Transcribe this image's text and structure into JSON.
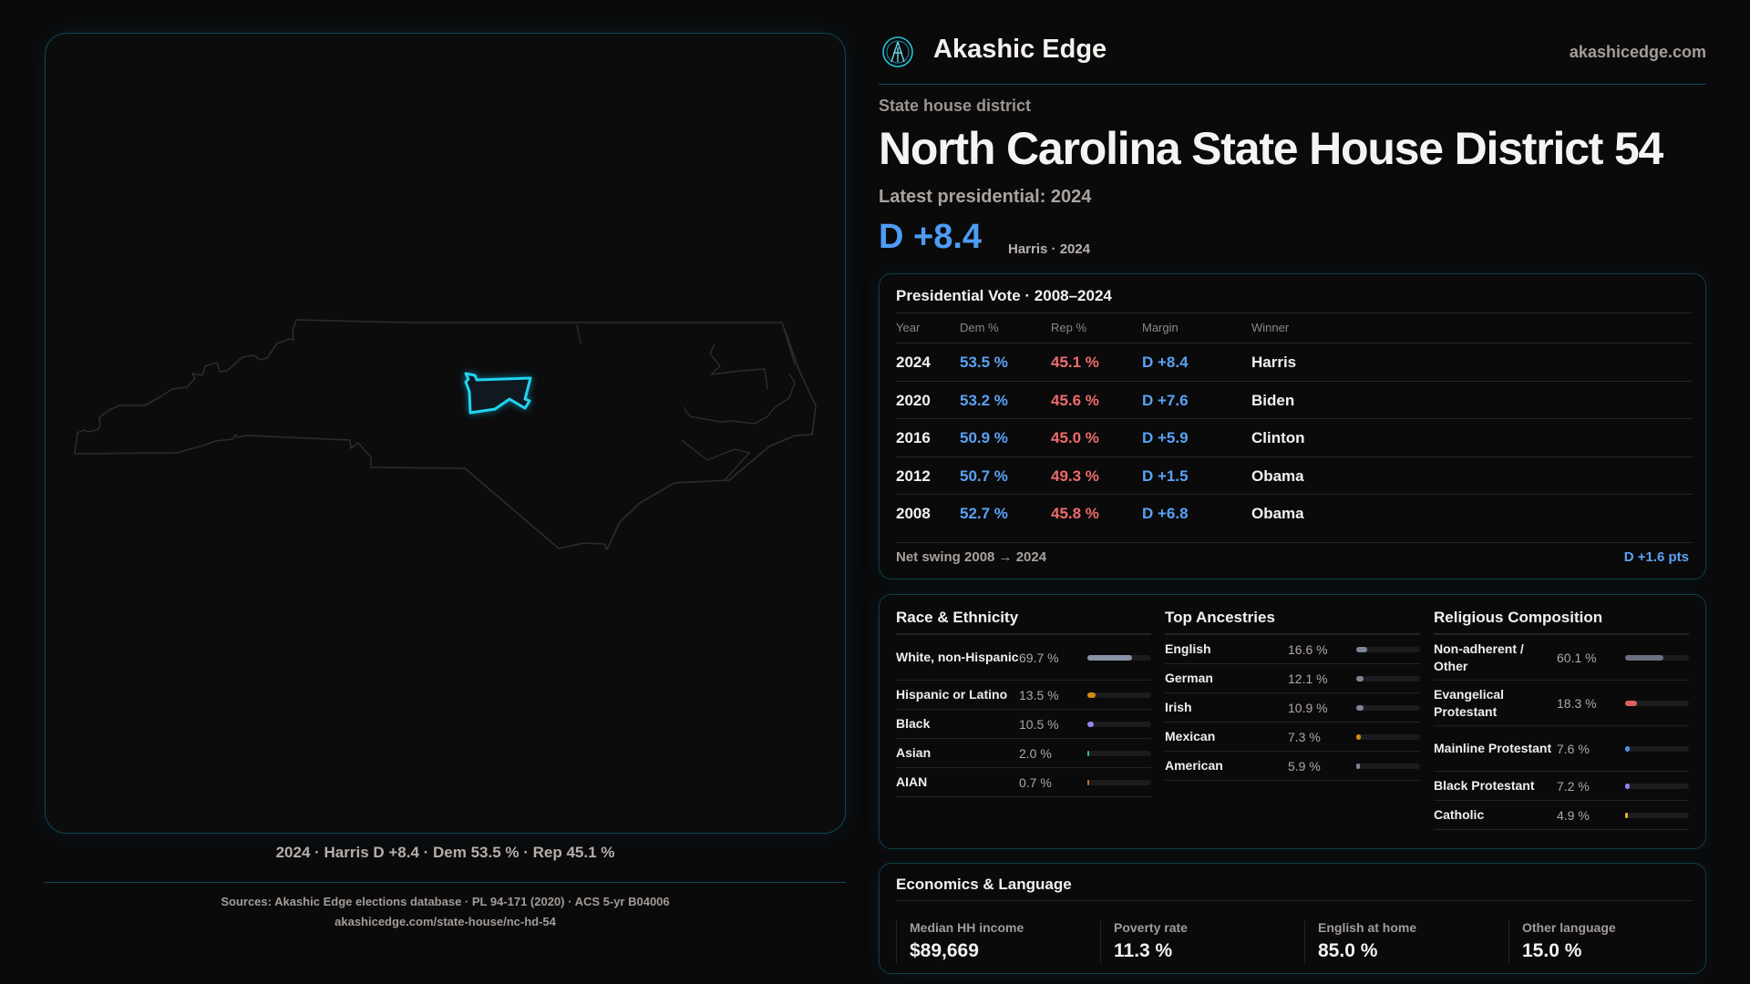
{
  "brand": {
    "name": "Akashic Edge",
    "site": "akashicedge.com"
  },
  "page": {
    "kind": "State house district",
    "title": "North Carolina State House District 54",
    "latest": "Latest presidential: 2024",
    "margin": "D +8.4",
    "margin_sub": "Harris · 2024"
  },
  "map": {
    "caption": "2024 · Harris D +8.4 · Dem 53.5 % · Rep 45.1 %",
    "highlight_color": "#22d3ee"
  },
  "presidential": {
    "title": "Presidential Vote · 2008–2024",
    "headers": [
      "Year",
      "Dem %",
      "Rep %",
      "Margin",
      "Winner"
    ],
    "rows": [
      [
        "2024",
        "53.5 %",
        "45.1 %",
        "D +8.4",
        "Harris"
      ],
      [
        "2020",
        "53.2 %",
        "45.6 %",
        "D +7.6",
        "Biden"
      ],
      [
        "2016",
        "50.9 %",
        "45.0 %",
        "D +5.9",
        "Clinton"
      ],
      [
        "2012",
        "50.7 %",
        "49.3 %",
        "D +1.5",
        "Obama"
      ],
      [
        "2008",
        "52.7 %",
        "45.8 %",
        "D +6.8",
        "Obama"
      ]
    ],
    "swing_label": "Net swing 2008 → 2024",
    "swing_value": "D +1.6 pts"
  },
  "demographics": [
    {
      "title": "Race & Ethnicity",
      "items": [
        {
          "label": "White, non-Hispanic",
          "value": "69.7 %",
          "pct": 69.7,
          "color": "#8a93a5"
        },
        {
          "label": "Hispanic or Latino",
          "value": "13.5 %",
          "pct": 13.5,
          "color": "#d68a10"
        },
        {
          "label": "Black",
          "value": "10.5 %",
          "pct": 10.5,
          "color": "#9b7ff0"
        },
        {
          "label": "Asian",
          "value": "2.0 %",
          "pct": 2.0,
          "color": "#2ec27e"
        },
        {
          "label": "AIAN",
          "value": "0.7 %",
          "pct": 0.7,
          "color": "#d2691e"
        }
      ]
    },
    {
      "title": "Top Ancestries",
      "items": [
        {
          "label": "English",
          "value": "16.6 %",
          "pct": 16.6,
          "color": "#7d8596"
        },
        {
          "label": "German",
          "value": "12.1 %",
          "pct": 12.1,
          "color": "#7d8596"
        },
        {
          "label": "Irish",
          "value": "10.9 %",
          "pct": 10.9,
          "color": "#7d8596"
        },
        {
          "label": "Mexican",
          "value": "7.3 %",
          "pct": 7.3,
          "color": "#d68a10"
        },
        {
          "label": "American",
          "value": "5.9 %",
          "pct": 5.9,
          "color": "#7d8596"
        }
      ]
    },
    {
      "title": "Religious Composition",
      "items": [
        {
          "label": "Non-adherent / Other",
          "value": "60.1 %",
          "pct": 60.1,
          "color": "#6b7080"
        },
        {
          "label": "Evangelical Protestant",
          "value": "18.3 %",
          "pct": 18.3,
          "color": "#e06060"
        },
        {
          "label": "Mainline Protestant",
          "value": "7.6 %",
          "pct": 7.6,
          "color": "#4a90e2"
        },
        {
          "label": "Black Protestant",
          "value": "7.2 %",
          "pct": 7.2,
          "color": "#9b7ff0"
        },
        {
          "label": "Catholic",
          "value": "4.9 %",
          "pct": 4.9,
          "color": "#e0b020"
        }
      ]
    }
  ],
  "economics": {
    "title": "Economics & Language",
    "stats": [
      {
        "label": "Median HH income",
        "value": "$89,669"
      },
      {
        "label": "Poverty rate",
        "value": "11.3 %"
      },
      {
        "label": "English at home",
        "value": "85.0 %"
      },
      {
        "label": "Other language",
        "value": "15.0 %"
      }
    ]
  },
  "footer": {
    "sources": "Sources: Akashic Edge elections database · PL 94-171 (2020) · ACS 5-yr B04006",
    "url": "akashicedge.com/state-house/nc-hd-54"
  }
}
